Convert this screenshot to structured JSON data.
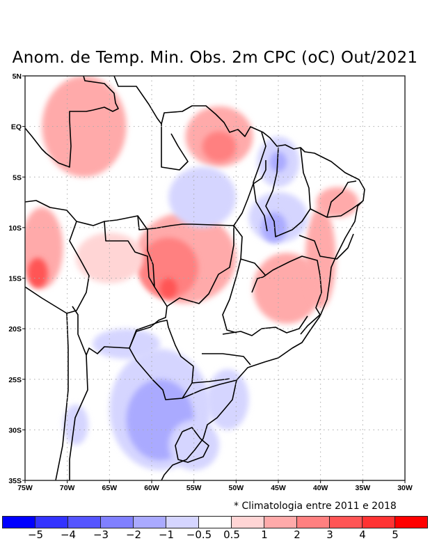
{
  "title": "Anom. de Temp. Min. Obs. 2m CPC (oC) Out/2021",
  "note": "* Climatologia entre 2011 e 2018",
  "map": {
    "lon_range": [
      -75,
      -30
    ],
    "lat_range": [
      -35,
      5
    ],
    "lon_ticks": [
      {
        "value": -75,
        "label": "75W"
      },
      {
        "value": -70,
        "label": "70W"
      },
      {
        "value": -65,
        "label": "65W"
      },
      {
        "value": -60,
        "label": "60W"
      },
      {
        "value": -55,
        "label": "55W"
      },
      {
        "value": -50,
        "label": "50W"
      },
      {
        "value": -45,
        "label": "45W"
      },
      {
        "value": -40,
        "label": "40W"
      },
      {
        "value": -35,
        "label": "35W"
      },
      {
        "value": -30,
        "label": "30W"
      }
    ],
    "lat_ticks": [
      {
        "value": 5,
        "label": "5N"
      },
      {
        "value": 0,
        "label": "EQ"
      },
      {
        "value": -5,
        "label": "5S"
      },
      {
        "value": -10,
        "label": "10S"
      },
      {
        "value": -15,
        "label": "15S"
      },
      {
        "value": -20,
        "label": "20S"
      },
      {
        "value": -25,
        "label": "25S"
      },
      {
        "value": -30,
        "label": "30S"
      },
      {
        "value": -35,
        "label": "35S"
      }
    ],
    "anomaly_regions": [
      {
        "name": "nw-amazon-warm",
        "lon": -68,
        "lat": 0,
        "rx": 5,
        "ry": 5,
        "level": 2
      },
      {
        "name": "para-north-warm",
        "lon": -52,
        "lat": -1,
        "rx": 4,
        "ry": 3,
        "level": 2
      },
      {
        "name": "para-north-core",
        "lon": -52,
        "lat": -2,
        "rx": 2,
        "ry": 1.5,
        "level": 3
      },
      {
        "name": "mato-grosso-warm",
        "lon": -56,
        "lat": -13,
        "rx": 6,
        "ry": 4.5,
        "level": 2
      },
      {
        "name": "mato-grosso-core",
        "lon": -58,
        "lat": -14,
        "rx": 3.5,
        "ry": 3,
        "level": 3
      },
      {
        "name": "mato-grosso-peak",
        "lon": -58,
        "lat": -16,
        "rx": 1,
        "ry": 1,
        "level": 4
      },
      {
        "name": "peru-warm",
        "lon": -73,
        "lat": -12,
        "rx": 2.5,
        "ry": 4,
        "level": 2
      },
      {
        "name": "peru-core",
        "lon": -73.5,
        "lat": -14.5,
        "rx": 1.2,
        "ry": 1.5,
        "level": 4
      },
      {
        "name": "bolivia-warm",
        "lon": -65,
        "lat": -13,
        "rx": 4,
        "ry": 2.5,
        "level": 1
      },
      {
        "name": "minas-warm",
        "lon": -44,
        "lat": -16,
        "rx": 4,
        "ry": 3.5,
        "level": 2
      },
      {
        "name": "bahia-coast-warm",
        "lon": -40,
        "lat": -13,
        "rx": 1.8,
        "ry": 5,
        "level": 2
      },
      {
        "name": "ne-coast-warm",
        "lon": -38,
        "lat": -7.5,
        "rx": 2.5,
        "ry": 1.5,
        "level": 2
      },
      {
        "name": "maranhao-cold",
        "lon": -45,
        "lat": -3.5,
        "rx": 2.5,
        "ry": 2.5,
        "level": -1
      },
      {
        "name": "maranhao-core",
        "lon": -45,
        "lat": -3.5,
        "rx": 1,
        "ry": 1,
        "level": -2
      },
      {
        "name": "piaui-cold",
        "lon": -45,
        "lat": -9,
        "rx": 3.5,
        "ry": 2.5,
        "level": -1
      },
      {
        "name": "piaui-core",
        "lon": -45.5,
        "lat": -10,
        "rx": 1.5,
        "ry": 1.5,
        "level": -2
      },
      {
        "name": "para-south-cold",
        "lon": -54,
        "lat": -7,
        "rx": 4,
        "ry": 3,
        "level": -1
      },
      {
        "name": "argentina-cold",
        "lon": -59,
        "lat": -28,
        "rx": 6,
        "ry": 6,
        "level": -1
      },
      {
        "name": "argentina-core",
        "lon": -59,
        "lat": -29,
        "rx": 4,
        "ry": 4,
        "level": -2
      },
      {
        "name": "chile-cold",
        "lon": -69,
        "lat": -29.5,
        "rx": 1.5,
        "ry": 2,
        "level": -1
      },
      {
        "name": "uruguay-cold",
        "lon": -55,
        "lat": -31.5,
        "rx": 3,
        "ry": 2.5,
        "level": -1
      },
      {
        "name": "rs-cold",
        "lon": -51,
        "lat": -27,
        "rx": 2.5,
        "ry": 3,
        "level": -1
      },
      {
        "name": "bolivia-south-cold",
        "lon": -63,
        "lat": -21.5,
        "rx": 4,
        "ry": 1.5,
        "level": -1
      }
    ]
  },
  "colorbar": {
    "colors": [
      "#0000ff",
      "#3333ff",
      "#5555ff",
      "#8080ff",
      "#aaaaff",
      "#d5d5ff",
      "#ffffff",
      "#ffd5d5",
      "#ffaaaa",
      "#ff8080",
      "#ff5555",
      "#ff3333",
      "#ff0000"
    ],
    "labels": [
      "−5",
      "−4",
      "−3",
      "−2",
      "−1",
      "−0.5",
      "0.5",
      "1",
      "2",
      "3",
      "4",
      "5"
    ]
  }
}
